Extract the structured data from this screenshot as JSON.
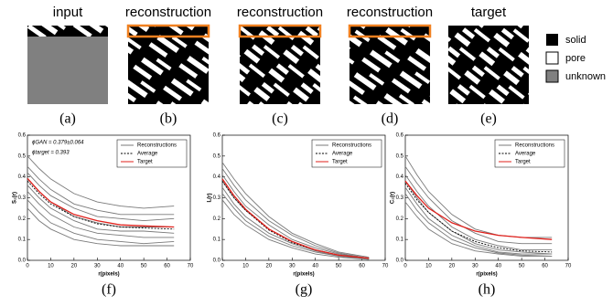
{
  "panels": {
    "titles": [
      "input",
      "reconstruction",
      "reconstruction",
      "reconstruction",
      "target"
    ],
    "captions": [
      "(a)",
      "(b)",
      "(c)",
      "(d)",
      "(e)"
    ]
  },
  "legend": [
    "solid",
    "pore",
    "unknown"
  ],
  "chart_data": [
    {
      "type": "line",
      "caption": "(f)",
      "xlabel": "r(pixels)",
      "ylabel": "S₂(r)",
      "annotations": [
        "ϕGAN = 0.379±0.064",
        "ϕtarget = 0.393"
      ],
      "x": [
        0,
        5,
        10,
        20,
        30,
        40,
        50,
        63
      ],
      "xlim": [
        0,
        70
      ],
      "xticks": [
        0,
        10,
        20,
        30,
        40,
        50,
        60,
        70
      ],
      "ylim": [
        0,
        0.6
      ],
      "yticks": [
        {
          "value": 0,
          "label": "0.0"
        },
        0.1,
        0.2,
        0.3,
        0.4,
        0.5,
        0.6
      ],
      "series": [
        {
          "name": "Reconstructions",
          "color": "#7a7a7a",
          "lines": [
            [
              0.5,
              0.44,
              0.39,
              0.32,
              0.28,
              0.26,
              0.25,
              0.26
            ],
            [
              0.45,
              0.39,
              0.34,
              0.27,
              0.24,
              0.22,
              0.22,
              0.22
            ],
            [
              0.42,
              0.36,
              0.31,
              0.25,
              0.21,
              0.2,
              0.19,
              0.2
            ],
            [
              0.39,
              0.33,
              0.28,
              0.21,
              0.18,
              0.16,
              0.16,
              0.16
            ],
            [
              0.36,
              0.3,
              0.25,
              0.19,
              0.15,
              0.14,
              0.14,
              0.13
            ],
            [
              0.33,
              0.27,
              0.22,
              0.16,
              0.13,
              0.12,
              0.11,
              0.11
            ],
            [
              0.29,
              0.23,
              0.18,
              0.13,
              0.1,
              0.09,
              0.08,
              0.09
            ],
            [
              0.25,
              0.19,
              0.15,
              0.1,
              0.08,
              0.07,
              0.07,
              0.07
            ]
          ]
        },
        {
          "name": "Average",
          "color": "#000000",
          "style": "dashed",
          "values": [
            0.38,
            0.32,
            0.27,
            0.21,
            0.175,
            0.16,
            0.155,
            0.15
          ]
        },
        {
          "name": "Target",
          "color": "#e0201b",
          "values": [
            0.393,
            0.33,
            0.28,
            0.22,
            0.19,
            0.17,
            0.165,
            0.16
          ]
        }
      ]
    },
    {
      "type": "line",
      "caption": "(g)",
      "xlabel": "r(pixels)",
      "ylabel": "L(r)",
      "x": [
        0,
        5,
        10,
        20,
        30,
        40,
        50,
        63
      ],
      "xlim": [
        0,
        70
      ],
      "xticks": [
        0,
        10,
        20,
        30,
        40,
        50,
        60,
        70
      ],
      "ylim": [
        0,
        0.6
      ],
      "yticks": [
        {
          "value": 0,
          "label": "0.0"
        },
        0.1,
        0.2,
        0.3,
        0.4,
        0.5,
        0.6
      ],
      "series": [
        {
          "name": "Reconstructions",
          "color": "#7a7a7a",
          "lines": [
            [
              0.47,
              0.39,
              0.32,
              0.21,
              0.13,
              0.08,
              0.04,
              0.015
            ],
            [
              0.44,
              0.36,
              0.29,
              0.19,
              0.12,
              0.07,
              0.035,
              0.01
            ],
            [
              0.41,
              0.33,
              0.26,
              0.17,
              0.1,
              0.06,
              0.03,
              0.01
            ],
            [
              0.38,
              0.3,
              0.24,
              0.15,
              0.09,
              0.05,
              0.025,
              0.01
            ],
            [
              0.35,
              0.27,
              0.21,
              0.13,
              0.08,
              0.045,
              0.02,
              0.01
            ],
            [
              0.32,
              0.25,
              0.19,
              0.115,
              0.07,
              0.04,
              0.02,
              0.005
            ],
            [
              0.29,
              0.22,
              0.17,
              0.1,
              0.06,
              0.03,
              0.015,
              0.005
            ]
          ]
        },
        {
          "name": "Average",
          "color": "#000000",
          "style": "dashed",
          "values": [
            0.38,
            0.3,
            0.24,
            0.145,
            0.085,
            0.05,
            0.025,
            0.01
          ]
        },
        {
          "name": "Target",
          "color": "#e0201b",
          "values": [
            0.39,
            0.31,
            0.245,
            0.15,
            0.09,
            0.05,
            0.025,
            0.01
          ]
        }
      ]
    },
    {
      "type": "line",
      "caption": "(h)",
      "xlabel": "r(pixels)",
      "ylabel": "C₂(r)",
      "x": [
        0,
        5,
        10,
        20,
        30,
        40,
        50,
        63
      ],
      "xlim": [
        0,
        70
      ],
      "xticks": [
        0,
        10,
        20,
        30,
        40,
        50,
        60,
        70
      ],
      "ylim": [
        0,
        0.6
      ],
      "yticks": [
        {
          "value": 0,
          "label": "0.0"
        },
        0.1,
        0.2,
        0.3,
        0.4,
        0.5,
        0.6
      ],
      "series": [
        {
          "name": "Reconstructions",
          "color": "#7a7a7a",
          "lines": [
            [
              0.5,
              0.41,
              0.33,
              0.22,
              0.15,
              0.12,
              0.11,
              0.11
            ],
            [
              0.45,
              0.37,
              0.3,
              0.19,
              0.13,
              0.09,
              0.08,
              0.08
            ],
            [
              0.41,
              0.33,
              0.26,
              0.16,
              0.1,
              0.07,
              0.05,
              0.05
            ],
            [
              0.38,
              0.3,
              0.23,
              0.14,
              0.08,
              0.05,
              0.04,
              0.03
            ],
            [
              0.35,
              0.27,
              0.2,
              0.12,
              0.07,
              0.04,
              0.03,
              0.03
            ],
            [
              0.32,
              0.24,
              0.18,
              0.1,
              0.06,
              0.035,
              0.025,
              0.02
            ],
            [
              0.28,
              0.21,
              0.15,
              0.08,
              0.045,
              0.03,
              0.02,
              0.02
            ]
          ]
        },
        {
          "name": "Average",
          "color": "#000000",
          "style": "dashed",
          "values": [
            0.37,
            0.29,
            0.23,
            0.14,
            0.09,
            0.06,
            0.045,
            0.04
          ]
        },
        {
          "name": "Target",
          "color": "#e0201b",
          "values": [
            0.38,
            0.31,
            0.25,
            0.18,
            0.14,
            0.12,
            0.11,
            0.1
          ]
        }
      ]
    }
  ]
}
